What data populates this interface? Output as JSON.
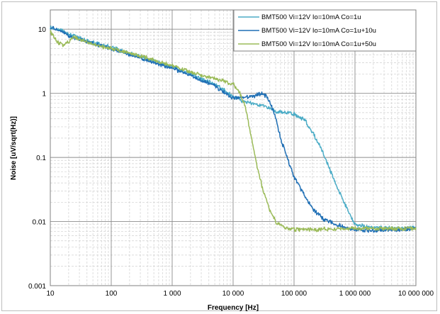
{
  "chart_data": {
    "type": "line",
    "xscale": "log",
    "yscale": "log",
    "xlim": [
      10,
      10000000
    ],
    "ylim": [
      0.001,
      20
    ],
    "xlabel": "Frequency [Hz]",
    "ylabel": "Noise [uV/sqrt(Hz)]",
    "xticks": [
      "10",
      "100",
      "1 000",
      "10 000",
      "100 000",
      "1 000 000",
      "10 000 000"
    ],
    "yticks": [
      "10",
      "1",
      "0.1",
      "0.01",
      "0.001"
    ],
    "grid": "major and minor",
    "legend_position": "top-right",
    "series": [
      {
        "name": "BMT500 Vi=12V Io=10mA Co=1u",
        "color": "#4bacc6",
        "x": [
          10,
          15,
          20,
          30,
          50,
          100,
          200,
          500,
          1000,
          2000,
          5000,
          10000,
          15000,
          20000,
          30000,
          40000,
          50000,
          70000,
          100000,
          150000,
          200000,
          300000,
          400000,
          500000,
          700000,
          1000000,
          2000000,
          5000000,
          10000000
        ],
        "y": [
          10.5,
          9.8,
          8.5,
          7.2,
          6.2,
          5.2,
          4.2,
          3.2,
          2.6,
          2.0,
          1.4,
          0.9,
          0.75,
          0.7,
          0.65,
          0.58,
          0.52,
          0.5,
          0.48,
          0.38,
          0.25,
          0.12,
          0.06,
          0.035,
          0.018,
          0.009,
          0.008,
          0.0078,
          0.008
        ]
      },
      {
        "name": "BMT500 Vi=12V Io=10mA Co=1u+10u",
        "color": "#1f6fb5",
        "x": [
          10,
          15,
          20,
          30,
          50,
          100,
          200,
          500,
          1000,
          2000,
          5000,
          10000,
          15000,
          20000,
          25000,
          30000,
          35000,
          40000,
          50000,
          60000,
          80000,
          100000,
          150000,
          200000,
          300000,
          500000,
          700000,
          1000000,
          2000000,
          5000000,
          10000000
        ],
        "y": [
          10.5,
          9.5,
          8.0,
          7.0,
          6.0,
          5.0,
          4.0,
          3.0,
          2.5,
          1.9,
          1.3,
          0.85,
          0.85,
          0.9,
          0.95,
          1.0,
          0.9,
          0.75,
          0.42,
          0.2,
          0.09,
          0.05,
          0.025,
          0.016,
          0.011,
          0.009,
          0.008,
          0.0075,
          0.0072,
          0.0075,
          0.0078
        ]
      },
      {
        "name": "BMT500 Vi=12V Io=10mA Co=1u+50u",
        "color": "#9bbb59",
        "x": [
          10,
          13,
          16,
          20,
          25,
          30,
          50,
          100,
          200,
          500,
          1000,
          2000,
          5000,
          10000,
          13000,
          16000,
          20000,
          25000,
          30000,
          40000,
          50000,
          70000,
          100000,
          200000,
          500000,
          1000000,
          2000000,
          5000000,
          10000000
        ],
        "y": [
          9.0,
          6.5,
          5.5,
          6.5,
          7.5,
          7.0,
          5.8,
          5.0,
          4.2,
          3.3,
          2.7,
          2.1,
          1.7,
          1.4,
          1.0,
          0.6,
          0.2,
          0.07,
          0.035,
          0.015,
          0.01,
          0.008,
          0.0075,
          0.0075,
          0.0076,
          0.0078,
          0.0078,
          0.0078,
          0.0078
        ]
      }
    ]
  }
}
